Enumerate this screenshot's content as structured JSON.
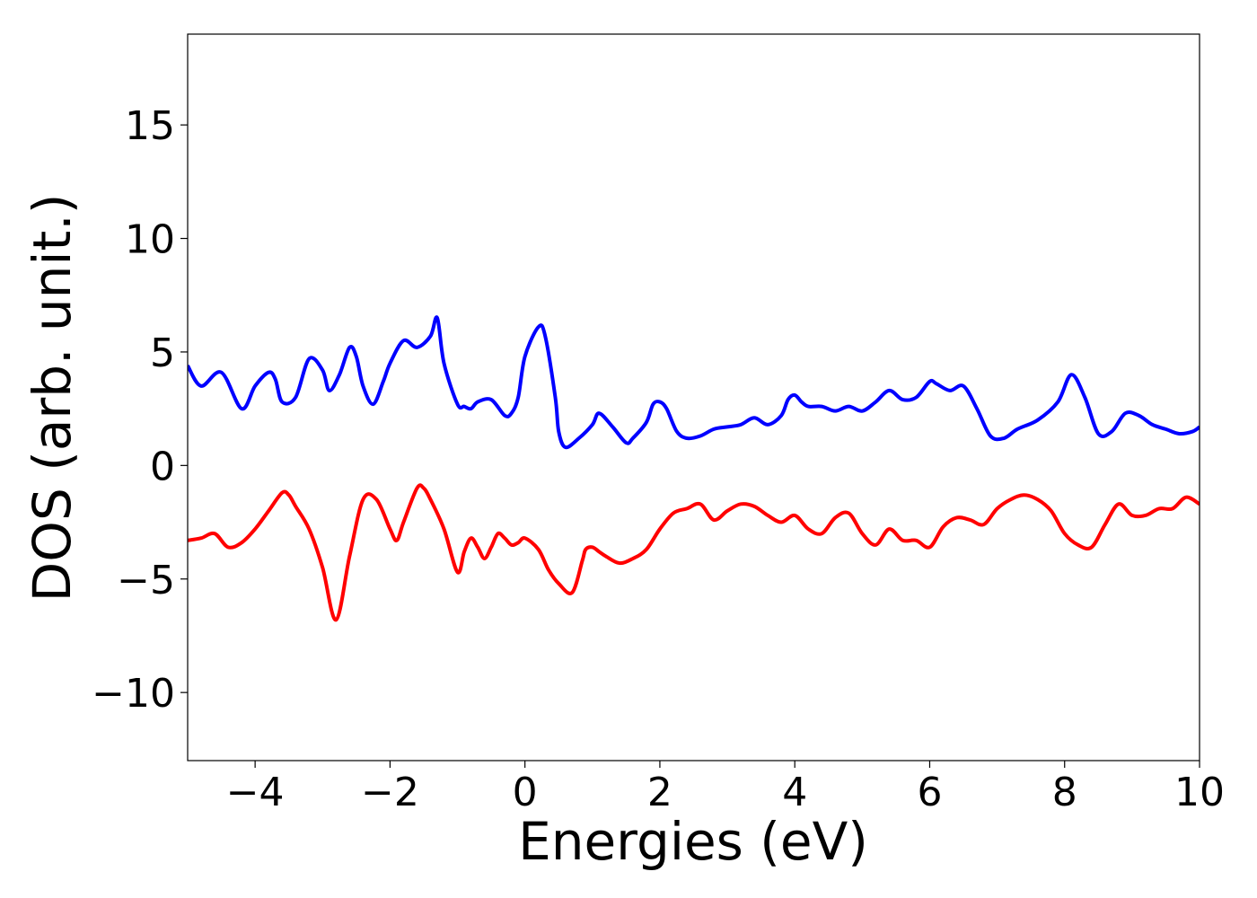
{
  "chart_data": {
    "type": "line",
    "title": "",
    "xlabel": "Energies (eV)",
    "ylabel": "DOS (arb. unit.)",
    "xlim": [
      -5,
      10
    ],
    "ylim": [
      -13,
      19
    ],
    "xticks": [
      -4,
      -2,
      0,
      2,
      4,
      6,
      8,
      10
    ],
    "xtick_labels": [
      "−4",
      "−2",
      "0",
      "2",
      "4",
      "6",
      "8",
      "10"
    ],
    "yticks": [
      -10,
      -5,
      0,
      5,
      10,
      15
    ],
    "ytick_labels": [
      "−10",
      "−5",
      "0",
      "5",
      "10",
      "15"
    ],
    "grid": false,
    "legend": "none",
    "series": [
      {
        "color": "#0000ff",
        "x": [
          -5.0,
          -4.8,
          -4.5,
          -4.2,
          -4.0,
          -3.8,
          -3.7,
          -3.6,
          -3.4,
          -3.2,
          -3.0,
          -2.9,
          -2.75,
          -2.6,
          -2.5,
          -2.4,
          -2.25,
          -2.1,
          -2.0,
          -1.8,
          -1.6,
          -1.4,
          -1.3,
          -1.2,
          -1.0,
          -0.9,
          -0.8,
          -0.7,
          -0.5,
          -0.3,
          -0.2,
          -0.1,
          0.0,
          0.2,
          0.3,
          0.45,
          0.5,
          0.6,
          0.8,
          1.0,
          1.1,
          1.3,
          1.5,
          1.6,
          1.8,
          1.9,
          2.0,
          2.1,
          2.25,
          2.4,
          2.6,
          2.8,
          3.0,
          3.2,
          3.4,
          3.6,
          3.8,
          3.9,
          4.0,
          4.1,
          4.2,
          4.4,
          4.6,
          4.8,
          5.0,
          5.2,
          5.4,
          5.6,
          5.8,
          6.0,
          6.1,
          6.3,
          6.5,
          6.7,
          6.9,
          7.1,
          7.3,
          7.6,
          7.9,
          8.1,
          8.3,
          8.5,
          8.7,
          8.9,
          9.1,
          9.3,
          9.5,
          9.7,
          9.9,
          10.0
        ],
        "y": [
          4.4,
          3.5,
          4.1,
          2.5,
          3.5,
          4.1,
          3.8,
          2.8,
          3.0,
          4.7,
          4.2,
          3.3,
          4.0,
          5.2,
          4.8,
          3.5,
          2.7,
          3.7,
          4.5,
          5.5,
          5.2,
          5.7,
          6.5,
          4.5,
          2.7,
          2.6,
          2.5,
          2.8,
          2.9,
          2.2,
          2.3,
          3.0,
          4.8,
          6.1,
          5.7,
          3.0,
          1.5,
          0.8,
          1.2,
          1.8,
          2.3,
          1.7,
          1.0,
          1.2,
          1.9,
          2.7,
          2.8,
          2.5,
          1.5,
          1.2,
          1.3,
          1.6,
          1.7,
          1.8,
          2.1,
          1.8,
          2.2,
          2.9,
          3.1,
          2.8,
          2.6,
          2.6,
          2.4,
          2.6,
          2.4,
          2.8,
          3.3,
          2.9,
          3.0,
          3.7,
          3.6,
          3.3,
          3.5,
          2.5,
          1.3,
          1.2,
          1.6,
          2.0,
          2.8,
          4.0,
          3.0,
          1.4,
          1.5,
          2.3,
          2.2,
          1.8,
          1.6,
          1.4,
          1.5,
          1.7
        ]
      },
      {
        "color": "#ff0000",
        "x": [
          -5.0,
          -4.8,
          -4.6,
          -4.4,
          -4.2,
          -4.0,
          -3.8,
          -3.6,
          -3.5,
          -3.4,
          -3.2,
          -3.0,
          -2.8,
          -2.6,
          -2.4,
          -2.2,
          -2.0,
          -1.9,
          -1.8,
          -1.6,
          -1.5,
          -1.4,
          -1.2,
          -1.0,
          -0.9,
          -0.8,
          -0.7,
          -0.6,
          -0.5,
          -0.4,
          -0.3,
          -0.2,
          -0.1,
          0.0,
          0.2,
          0.35,
          0.5,
          0.7,
          0.85,
          0.9,
          1.0,
          1.1,
          1.2,
          1.4,
          1.6,
          1.8,
          2.0,
          2.2,
          2.4,
          2.6,
          2.8,
          3.0,
          3.2,
          3.4,
          3.6,
          3.8,
          4.0,
          4.2,
          4.4,
          4.6,
          4.8,
          5.0,
          5.2,
          5.4,
          5.6,
          5.8,
          6.0,
          6.2,
          6.4,
          6.6,
          6.8,
          7.0,
          7.2,
          7.4,
          7.6,
          7.8,
          8.0,
          8.2,
          8.4,
          8.6,
          8.8,
          9.0,
          9.2,
          9.4,
          9.6,
          9.8,
          10.0
        ],
        "y": [
          -3.3,
          -3.2,
          -3.0,
          -3.6,
          -3.4,
          -2.8,
          -2.0,
          -1.2,
          -1.3,
          -1.8,
          -2.8,
          -4.5,
          -6.8,
          -4.0,
          -1.5,
          -1.5,
          -2.8,
          -3.3,
          -2.5,
          -1.0,
          -1.0,
          -1.5,
          -2.8,
          -4.7,
          -3.8,
          -3.2,
          -3.6,
          -4.1,
          -3.6,
          -3.0,
          -3.2,
          -3.5,
          -3.4,
          -3.2,
          -3.7,
          -4.6,
          -5.2,
          -5.6,
          -4.2,
          -3.7,
          -3.6,
          -3.8,
          -4.0,
          -4.3,
          -4.1,
          -3.7,
          -2.8,
          -2.1,
          -1.9,
          -1.7,
          -2.4,
          -2.0,
          -1.7,
          -1.8,
          -2.2,
          -2.5,
          -2.2,
          -2.8,
          -3.0,
          -2.3,
          -2.1,
          -3.0,
          -3.5,
          -2.8,
          -3.3,
          -3.3,
          -3.6,
          -2.7,
          -2.3,
          -2.4,
          -2.6,
          -1.9,
          -1.5,
          -1.3,
          -1.5,
          -2.0,
          -3.0,
          -3.5,
          -3.6,
          -2.6,
          -1.7,
          -2.2,
          -2.2,
          -1.9,
          -1.9,
          -1.4,
          -1.7
        ]
      }
    ]
  }
}
